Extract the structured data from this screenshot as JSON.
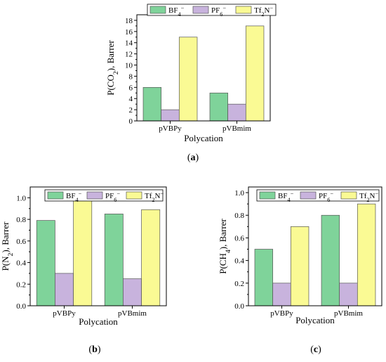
{
  "chart_data": [
    {
      "panel": "a",
      "type": "bar",
      "categories": [
        "pVBPy",
        "pVBmim"
      ],
      "series": [
        {
          "name": "BF4−",
          "values": [
            6,
            5
          ]
        },
        {
          "name": "PF6−",
          "values": [
            2,
            3
          ]
        },
        {
          "name": "Tf2N−",
          "values": [
            15,
            17
          ]
        }
      ],
      "xlabel": "Polycation",
      "ylabel": "P(CO2), Barrer",
      "ylim": [
        0,
        19
      ],
      "yticks": [
        0,
        2,
        4,
        6,
        8,
        10,
        12,
        14,
        16,
        18
      ],
      "legend_placement": "top",
      "grid": false
    },
    {
      "panel": "b",
      "type": "bar",
      "categories": [
        "pVBPy",
        "pVBmim"
      ],
      "series": [
        {
          "name": "BF4−",
          "values": [
            0.79,
            0.85
          ]
        },
        {
          "name": "PF6−",
          "values": [
            0.3,
            0.25
          ]
        },
        {
          "name": "Tf2N−",
          "values": [
            0.98,
            0.89
          ]
        }
      ],
      "xlabel": "Polycation",
      "ylabel": "P(N2), Barrer",
      "ylim": [
        0,
        1.1
      ],
      "yticks": [
        0.0,
        0.2,
        0.4,
        0.6,
        0.8,
        1.0
      ],
      "legend_placement": "top",
      "grid": false
    },
    {
      "panel": "c",
      "type": "bar",
      "categories": [
        "pVBPy",
        "pVBmim"
      ],
      "series": [
        {
          "name": "BF4−",
          "values": [
            0.5,
            0.8
          ]
        },
        {
          "name": "PF6−",
          "values": [
            0.2,
            0.2
          ]
        },
        {
          "name": "Tf2N−",
          "values": [
            0.7,
            0.9
          ]
        }
      ],
      "xlabel": "Polycation",
      "ylabel": "P(CH4), Barrer",
      "ylim": [
        0,
        1.05
      ],
      "yticks": [
        0.0,
        0.2,
        0.4,
        0.6,
        0.8,
        1.0
      ],
      "legend_placement": "top",
      "grid": false
    }
  ],
  "colors": {
    "BF4": "#7fd39a",
    "PF6": "#c8b3dd",
    "Tf2N": "#fafa94",
    "stroke": "#555555"
  },
  "panel_labels": [
    "(a)",
    "(b)",
    "(c)"
  ]
}
